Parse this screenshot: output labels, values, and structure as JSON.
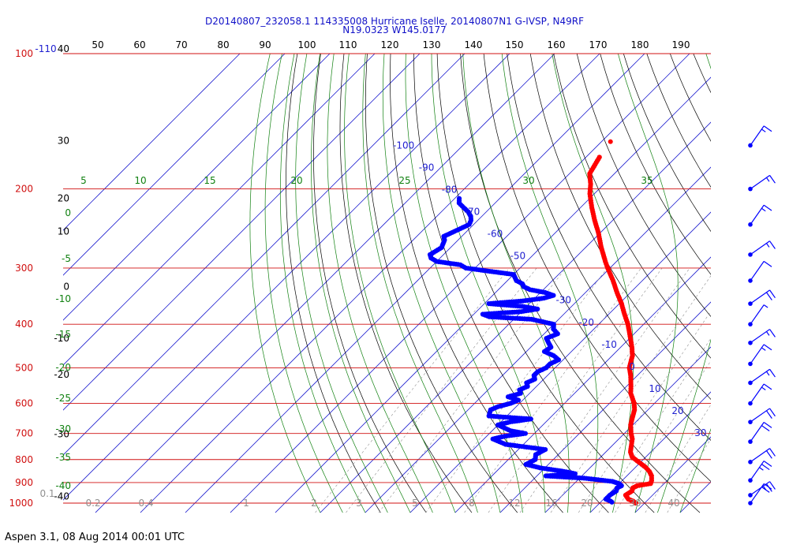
{
  "title_line1": "D20140807_232058.1 114335008 Hurricane Iselle, 20140807N1 G-IVSP, N49RF",
  "title_line2": "N19.0323 W145.0177",
  "footer": "Aspen 3.1, 08 Aug 2014  00:01 UTC",
  "colors": {
    "isobar": "#d01010",
    "isotherm": "#2020d0",
    "dry_adiabat": "#000000",
    "moist_adiabat": "#108010",
    "mixing_ratio": "#909090",
    "temperature": "#ff0000",
    "dewpoint": "#0000ff",
    "wind_barb": "#0000ff"
  },
  "chart_data": {
    "type": "scatter",
    "subtype": "skew-t log-p sounding",
    "title": "D20140807_232058.1 114335008 Hurricane Iselle, 20140807N1 G-IVSP, N49RF",
    "subtitle": "N19.0323 W145.0177",
    "y_scale": "log",
    "ylim": [
      1000,
      100
    ],
    "pressure_ticks": [
      {
        "p": 100,
        "label": "100"
      },
      {
        "p": 200,
        "label": "200"
      },
      {
        "p": 300,
        "label": "300"
      },
      {
        "p": 400,
        "label": "400"
      },
      {
        "p": 500,
        "label": "500"
      },
      {
        "p": 600,
        "label": "600"
      },
      {
        "p": 700,
        "label": "700"
      },
      {
        "p": 800,
        "label": "800"
      },
      {
        "p": 900,
        "label": "900"
      },
      {
        "p": 1000,
        "label": "1000"
      }
    ],
    "top_axis_labels": [
      "-110",
      "50",
      "60",
      "70",
      "80",
      "90",
      "100",
      "110",
      "120",
      "130",
      "140",
      "150",
      "160",
      "170",
      "180",
      "190"
    ],
    "altitude_labels": [
      {
        "p": 100,
        "label": "40"
      },
      {
        "p": 160,
        "label": "30"
      },
      {
        "p": 215,
        "label": "20"
      },
      {
        "p": 255,
        "label": "10"
      },
      {
        "p": 338,
        "label": "0"
      },
      {
        "p": 440,
        "label": "-10"
      },
      {
        "p": 530,
        "label": "-20"
      },
      {
        "p": 720,
        "label": "-30"
      },
      {
        "p": 990,
        "label": "-40"
      }
    ],
    "isotherm_labels": [
      {
        "t": -100,
        "label": "-100"
      },
      {
        "t": -90,
        "label": "-90"
      },
      {
        "t": -80,
        "label": "-80"
      },
      {
        "t": -70,
        "label": "-70"
      },
      {
        "t": -60,
        "label": "-60"
      },
      {
        "t": -50,
        "label": "-50"
      },
      {
        "t": -30,
        "label": "-30"
      },
      {
        "t": -20,
        "label": "-20"
      },
      {
        "t": -10,
        "label": "-10"
      },
      {
        "t": 0,
        "label": "0"
      },
      {
        "t": 10,
        "label": "10"
      },
      {
        "t": 20,
        "label": "20"
      },
      {
        "t": 30,
        "label": "30"
      }
    ],
    "moist_top_labels": [
      "5",
      "10",
      "15",
      "20",
      "25",
      "30",
      "35"
    ],
    "moist_left_labels": [
      "0",
      "-5",
      "-10",
      "-15",
      "-20",
      "-25",
      "-30",
      "-35",
      "-40"
    ],
    "mixing_ratio_labels": [
      "0.1",
      "0.2",
      "0.4",
      "1",
      "2",
      "3",
      "5",
      "8",
      "12",
      "16",
      "20",
      "30",
      "40"
    ],
    "temperature_profile": [
      [
        1000,
        28.0
      ],
      [
        990,
        27.0
      ],
      [
        980,
        25.5
      ],
      [
        960,
        24.0
      ],
      [
        940,
        24.5
      ],
      [
        925,
        24.0
      ],
      [
        915,
        24.5
      ],
      [
        905,
        27.0
      ],
      [
        890,
        26.5
      ],
      [
        870,
        25.5
      ],
      [
        850,
        24.0
      ],
      [
        830,
        22.0
      ],
      [
        810,
        19.5
      ],
      [
        790,
        17.0
      ],
      [
        770,
        15.5
      ],
      [
        750,
        14.5
      ],
      [
        720,
        13.0
      ],
      [
        700,
        11.5
      ],
      [
        670,
        9.5
      ],
      [
        650,
        8.5
      ],
      [
        620,
        7.0
      ],
      [
        600,
        5.5
      ],
      [
        570,
        2.5
      ],
      [
        550,
        1.0
      ],
      [
        520,
        -1.5
      ],
      [
        500,
        -3.5
      ],
      [
        470,
        -5.5
      ],
      [
        450,
        -7.5
      ],
      [
        420,
        -11.0
      ],
      [
        400,
        -13.5
      ],
      [
        380,
        -16.5
      ],
      [
        360,
        -19.5
      ],
      [
        340,
        -23.0
      ],
      [
        320,
        -26.5
      ],
      [
        300,
        -30.5
      ],
      [
        290,
        -32.5
      ],
      [
        270,
        -36.5
      ],
      [
        250,
        -40.5
      ],
      [
        235,
        -44.0
      ],
      [
        220,
        -47.5
      ],
      [
        205,
        -51.0
      ],
      [
        195,
        -53.0
      ],
      [
        185,
        -55.5
      ],
      [
        170,
        -57.0
      ]
    ],
    "temperature_isolated_point": [
      157,
      -58.0
    ],
    "dewpoint_profile": [
      [
        995,
        22.5
      ],
      [
        990,
        22.0
      ],
      [
        980,
        20.5
      ],
      [
        960,
        20.5
      ],
      [
        940,
        21.0
      ],
      [
        925,
        20.5
      ],
      [
        915,
        21.0
      ],
      [
        905,
        20.0
      ],
      [
        895,
        18.0
      ],
      [
        880,
        11.0
      ],
      [
        870,
        2.0
      ],
      [
        860,
        8.0
      ],
      [
        850,
        5.0
      ],
      [
        835,
        -1.0
      ],
      [
        820,
        -5.0
      ],
      [
        800,
        -4.0
      ],
      [
        780,
        -5.0
      ],
      [
        760,
        -4.0
      ],
      [
        740,
        -14.0
      ],
      [
        720,
        -18.0
      ],
      [
        710,
        -16.0
      ],
      [
        700,
        -12.0
      ],
      [
        690,
        -16.0
      ],
      [
        680,
        -18.0
      ],
      [
        670,
        -20.0
      ],
      [
        660,
        -18.0
      ],
      [
        650,
        -14.0
      ],
      [
        640,
        -24.0
      ],
      [
        620,
        -25.0
      ],
      [
        610,
        -24.0
      ],
      [
        600,
        -22.0
      ],
      [
        590,
        -21.0
      ],
      [
        580,
        -24.0
      ],
      [
        570,
        -22.0
      ],
      [
        560,
        -23.0
      ],
      [
        550,
        -22.0
      ],
      [
        540,
        -23.0
      ],
      [
        530,
        -22.0
      ],
      [
        520,
        -23.0
      ],
      [
        510,
        -23.0
      ],
      [
        500,
        -22.0
      ],
      [
        490,
        -22.0
      ],
      [
        480,
        -21.0
      ],
      [
        470,
        -23.0
      ],
      [
        460,
        -26.0
      ],
      [
        450,
        -25.5
      ],
      [
        440,
        -27.0
      ],
      [
        430,
        -28.5
      ],
      [
        420,
        -27.0
      ],
      [
        410,
        -29.0
      ],
      [
        400,
        -30.0
      ],
      [
        390,
        -36.0
      ],
      [
        385,
        -46.0
      ],
      [
        380,
        -48.0
      ],
      [
        375,
        -40.0
      ],
      [
        370,
        -37.0
      ],
      [
        365,
        -41.0
      ],
      [
        360,
        -49.0
      ],
      [
        355,
        -42.0
      ],
      [
        350,
        -38.0
      ],
      [
        345,
        -36.5
      ],
      [
        340,
        -39.0
      ],
      [
        335,
        -43.0
      ],
      [
        330,
        -45.0
      ],
      [
        325,
        -46.0
      ],
      [
        320,
        -48.0
      ],
      [
        315,
        -49.0
      ],
      [
        310,
        -50.0
      ],
      [
        305,
        -56.0
      ],
      [
        300,
        -62.0
      ],
      [
        295,
        -64.0
      ],
      [
        290,
        -70.0
      ],
      [
        285,
        -72.0
      ],
      [
        280,
        -73.0
      ],
      [
        270,
        -72.0
      ],
      [
        260,
        -73.0
      ],
      [
        255,
        -74.0
      ],
      [
        250,
        -73.0
      ],
      [
        245,
        -72.0
      ],
      [
        240,
        -71.0
      ],
      [
        235,
        -71.5
      ],
      [
        230,
        -72.5
      ],
      [
        225,
        -74.0
      ],
      [
        220,
        -76.0
      ],
      [
        215,
        -78.0
      ],
      [
        210,
        -79.0
      ]
    ],
    "wind_barbs": [
      {
        "p": 160,
        "speed_kt": 15
      },
      {
        "p": 200,
        "speed_kt": 15
      },
      {
        "p": 240,
        "speed_kt": 15
      },
      {
        "p": 280,
        "speed_kt": 15
      },
      {
        "p": 320,
        "speed_kt": 10
      },
      {
        "p": 360,
        "speed_kt": 20
      },
      {
        "p": 400,
        "speed_kt": 5
      },
      {
        "p": 440,
        "speed_kt": 15
      },
      {
        "p": 490,
        "speed_kt": 15
      },
      {
        "p": 540,
        "speed_kt": 15
      },
      {
        "p": 600,
        "speed_kt": 15
      },
      {
        "p": 660,
        "speed_kt": 20
      },
      {
        "p": 730,
        "speed_kt": 20
      },
      {
        "p": 810,
        "speed_kt": 20
      },
      {
        "p": 890,
        "speed_kt": 25
      },
      {
        "p": 960,
        "speed_kt": 25
      },
      {
        "p": 1000,
        "speed_kt": 20
      }
    ]
  }
}
